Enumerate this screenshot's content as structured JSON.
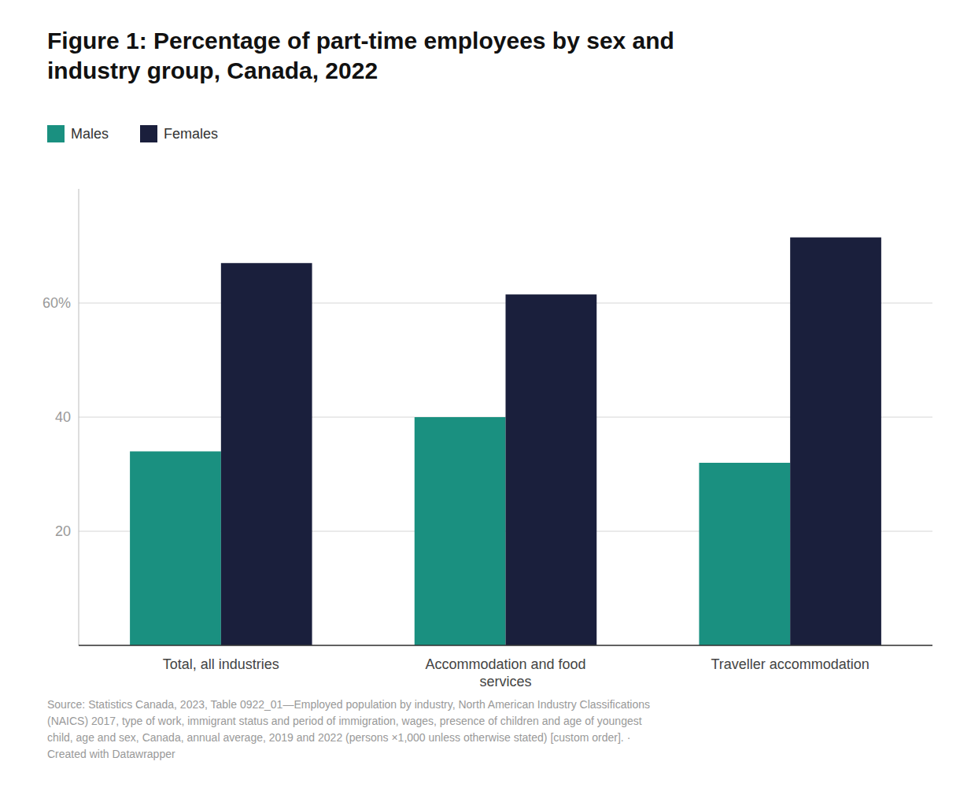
{
  "chart_data": {
    "type": "bar",
    "title": "Figure 1: Percentage of part-time employees by sex and\nindustry group, Canada, 2022",
    "categories": [
      "Total, all industries",
      "Accommodation and food\nservices",
      "Traveller accommodation"
    ],
    "series": [
      {
        "name": "Males",
        "color": "#1a9080",
        "values": [
          34.0,
          40.0,
          32.0
        ]
      },
      {
        "name": "Females",
        "color": "#1a1f3c",
        "values": [
          67.0,
          61.5,
          71.5
        ]
      }
    ],
    "ylim": [
      0,
      80
    ],
    "yticks": [
      {
        "value": 0,
        "label": null
      },
      20,
      40,
      {
        "value": 60,
        "label": "60%"
      }
    ],
    "grid": true,
    "legend": "top-left",
    "source": "Source: Statistics Canada, 2023, Table 0922_01—Employed population by industry, North American Industry Classifications\n(NAICS) 2017, type of work, immigrant status and period of immigration, wages, presence of children and age of youngest\nchild, age and sex, Canada, annual average, 2019 and 2022 (persons ×1,000 unless otherwise stated) [custom order]. ·\nCreated with Datawrapper"
  }
}
